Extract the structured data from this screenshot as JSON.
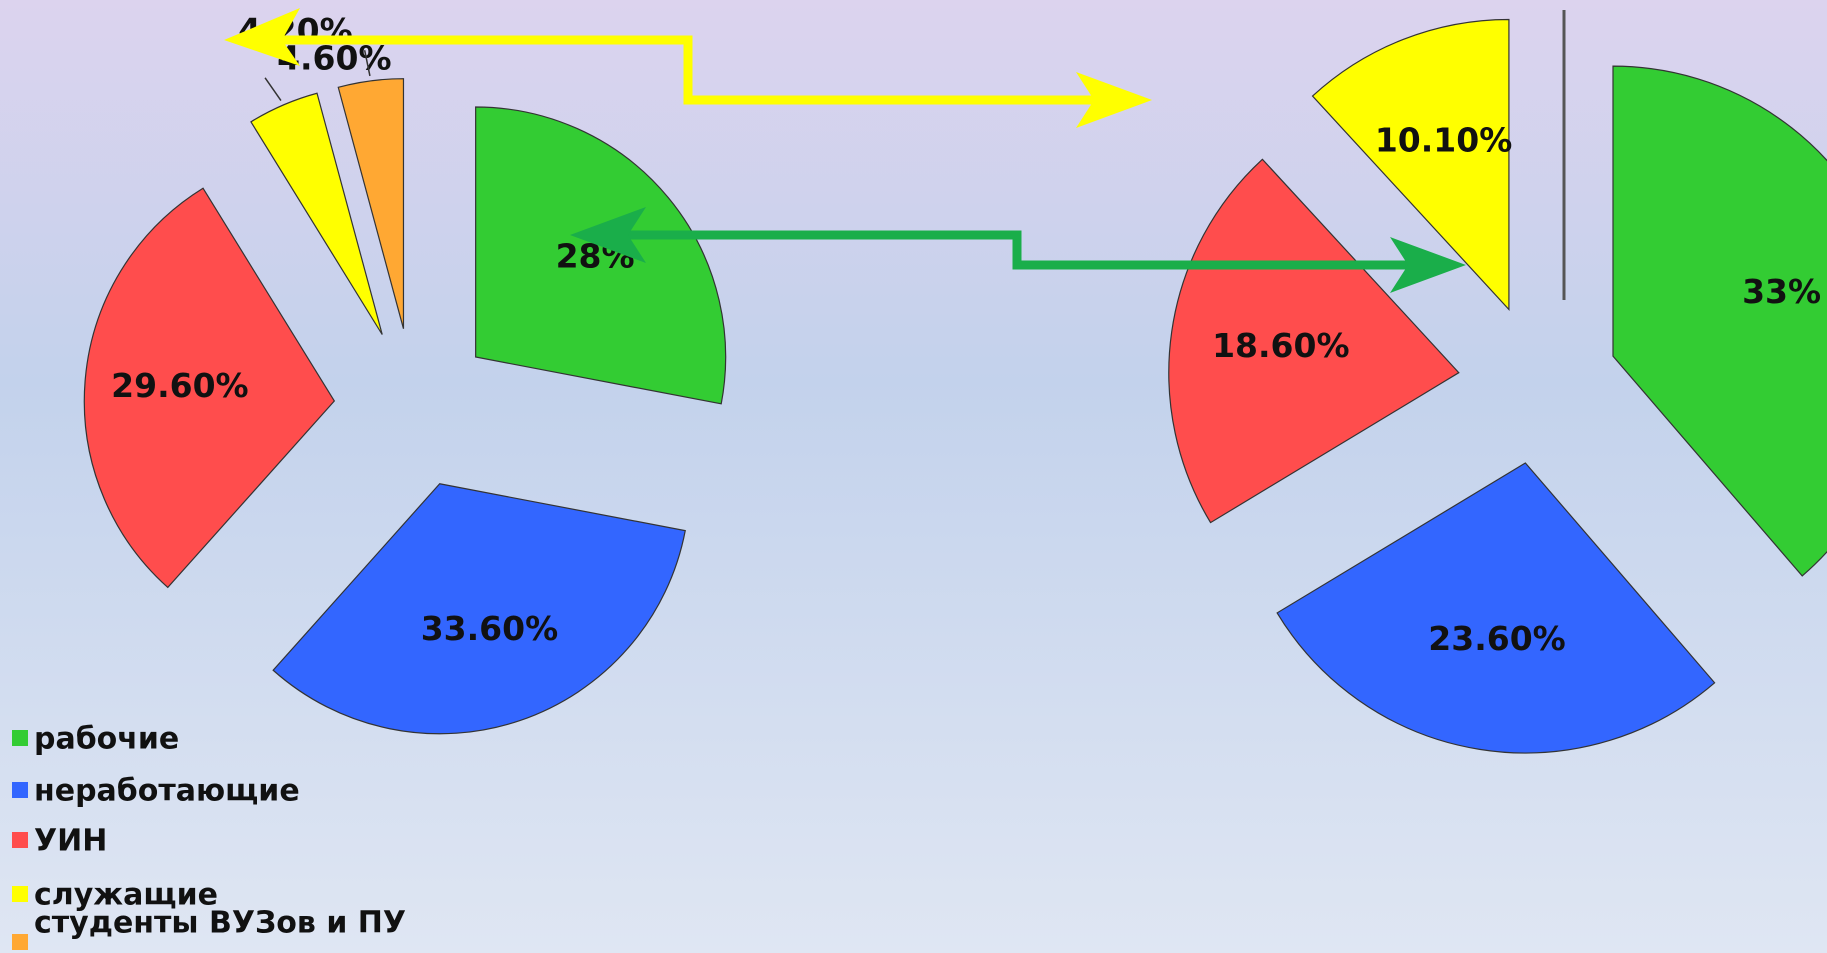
{
  "chart_data": [
    {
      "type": "pie",
      "categories": [
        "рабочие",
        "неработающие",
        "УИН",
        "служащие",
        "студенты ВУЗов и ПУ"
      ],
      "values": [
        28,
        33.6,
        29.6,
        4.6,
        4.2
      ],
      "value_labels": [
        "28%",
        "33.60%",
        "29.60%",
        "4.60%",
        "4.20%"
      ],
      "colors": [
        "#33cc33",
        "#3366ff",
        "#ff4d4d",
        "#ffff00",
        "#ffa833"
      ],
      "legend": "bottom-left"
    },
    {
      "type": "pie",
      "values": [
        33,
        23.6,
        18.6,
        10.1
      ],
      "value_labels": [
        "33%",
        "23.60%",
        "18.60%",
        "10.10%"
      ],
      "colors": [
        "#33cc33",
        "#3366ff",
        "#ff4d4d",
        "#ffff00"
      ]
    }
  ]
}
